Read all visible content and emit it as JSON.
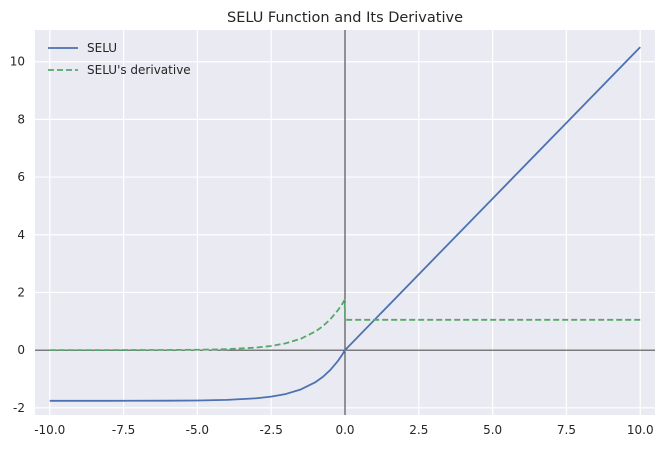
{
  "chart_data": {
    "type": "line",
    "title": "SELU Function and Its Derivative",
    "xlabel": "",
    "ylabel": "",
    "xlim": [
      -10.5,
      10.5
    ],
    "ylim": [
      -2.25,
      11.1
    ],
    "x_ticks": [
      -10.0,
      -7.5,
      -5.0,
      -2.5,
      0.0,
      2.5,
      5.0,
      7.5,
      10.0
    ],
    "x_tick_labels": [
      "-10.0",
      "-7.5",
      "-5.0",
      "-2.5",
      "0.0",
      "2.5",
      "5.0",
      "7.5",
      "10.0"
    ],
    "y_ticks": [
      -2,
      0,
      2,
      4,
      6,
      8,
      10
    ],
    "y_tick_labels": [
      "-2",
      "0",
      "2",
      "4",
      "6",
      "8",
      "10"
    ],
    "grid": true,
    "legend_position": "top-left",
    "axis_lines": "x=0 and y=0",
    "series": [
      {
        "name": "SELU",
        "color": "#4c72b0",
        "style": "solid",
        "x": [
          -10,
          -8,
          -6,
          -5,
          -4,
          -3,
          -2.5,
          -2,
          -1.5,
          -1,
          -0.75,
          -0.5,
          -0.25,
          -0.1,
          0,
          2.5,
          5,
          7.5,
          10
        ],
        "y": [
          -1.758,
          -1.758,
          -1.754,
          -1.746,
          -1.726,
          -1.67,
          -1.614,
          -1.52,
          -1.365,
          -1.111,
          -0.928,
          -0.692,
          -0.389,
          -0.167,
          0.0,
          2.627,
          5.254,
          7.88,
          10.507
        ]
      },
      {
        "name": "SELU's derivative",
        "color": "#55a868",
        "style": "dashed",
        "x": [
          -10,
          -8,
          -6,
          -5,
          -4,
          -3,
          -2.5,
          -2,
          -1.5,
          -1,
          -0.75,
          -0.5,
          -0.25,
          -0.1,
          -0.01,
          0,
          2.5,
          5,
          7.5,
          10
        ],
        "y": [
          0.0001,
          0.0006,
          0.0044,
          0.0118,
          0.032,
          0.088,
          0.144,
          0.238,
          0.392,
          0.647,
          0.83,
          1.066,
          1.369,
          1.591,
          1.741,
          1.051,
          1.051,
          1.051,
          1.051,
          1.051
        ]
      }
    ]
  }
}
